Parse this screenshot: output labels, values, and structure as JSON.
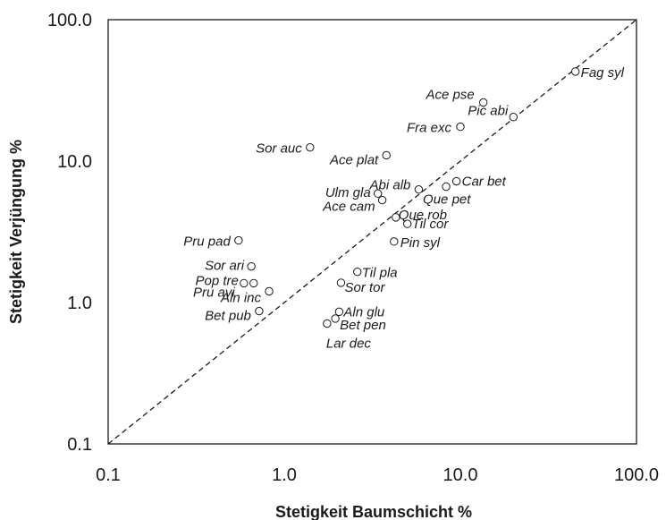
{
  "chart_data": {
    "type": "scatter",
    "xlabel": "Stetigkeit Baumschicht %",
    "ylabel": "Stetigkeit Verjüngung %",
    "xscale": "log",
    "yscale": "log",
    "xlim": [
      0.1,
      100
    ],
    "ylim": [
      0.1,
      100
    ],
    "x_ticks": [
      {
        "value": 0.1,
        "label": "0.1"
      },
      {
        "value": 1,
        "label": "1.0"
      },
      {
        "value": 10,
        "label": "10.0"
      },
      {
        "value": 100,
        "label": "100.0"
      }
    ],
    "y_ticks": [
      {
        "value": 0.1,
        "label": "0.1"
      },
      {
        "value": 1,
        "label": "1.0"
      },
      {
        "value": 10,
        "label": "10.0"
      },
      {
        "value": 100,
        "label": "100.0"
      }
    ],
    "reference_line": {
      "style": "dashed",
      "from": [
        0.1,
        0.1
      ],
      "to": [
        100,
        100
      ]
    },
    "grid": false,
    "marker": "open-circle",
    "points": [
      {
        "label": "Fag syl",
        "x": 45,
        "y": 43
      },
      {
        "label": "Ace pse",
        "x": 13.5,
        "y": 26
      },
      {
        "label": "Pic abi",
        "x": 20,
        "y": 20.5
      },
      {
        "label": "Fra exc",
        "x": 10,
        "y": 17.5
      },
      {
        "label": "Sor auc",
        "x": 1.4,
        "y": 12.5
      },
      {
        "label": "Ace plat",
        "x": 3.8,
        "y": 11
      },
      {
        "label": "Car bet",
        "x": 9.5,
        "y": 7.2
      },
      {
        "label": "Que pet",
        "x": 8.3,
        "y": 6.6
      },
      {
        "label": "Abi alb",
        "x": 5.8,
        "y": 6.3
      },
      {
        "label": "Ulm gla",
        "x": 3.4,
        "y": 5.9
      },
      {
        "label": "Ace cam",
        "x": 3.6,
        "y": 5.3
      },
      {
        "label": "Que rob",
        "x": 4.3,
        "y": 4.0
      },
      {
        "label": "Til cor",
        "x": 5.0,
        "y": 3.6
      },
      {
        "label": "Pin syl",
        "x": 4.2,
        "y": 2.7
      },
      {
        "label": "Pru pad",
        "x": 0.55,
        "y": 2.75
      },
      {
        "label": "Sor ari",
        "x": 0.65,
        "y": 1.8
      },
      {
        "label": "Til pla",
        "x": 2.6,
        "y": 1.65
      },
      {
        "label": "Pop tre",
        "x": 0.59,
        "y": 1.37
      },
      {
        "label": "Pru avi",
        "x": 0.67,
        "y": 1.37
      },
      {
        "label": "Sor tor",
        "x": 2.1,
        "y": 1.38
      },
      {
        "label": "Aln inc",
        "x": 0.82,
        "y": 1.2
      },
      {
        "label": "Bet pub",
        "x": 0.72,
        "y": 0.87
      },
      {
        "label": "Aln glu",
        "x": 2.05,
        "y": 0.86
      },
      {
        "label": "Bet pen",
        "x": 1.95,
        "y": 0.77
      },
      {
        "label": "Lar dec",
        "x": 1.75,
        "y": 0.71
      }
    ]
  }
}
